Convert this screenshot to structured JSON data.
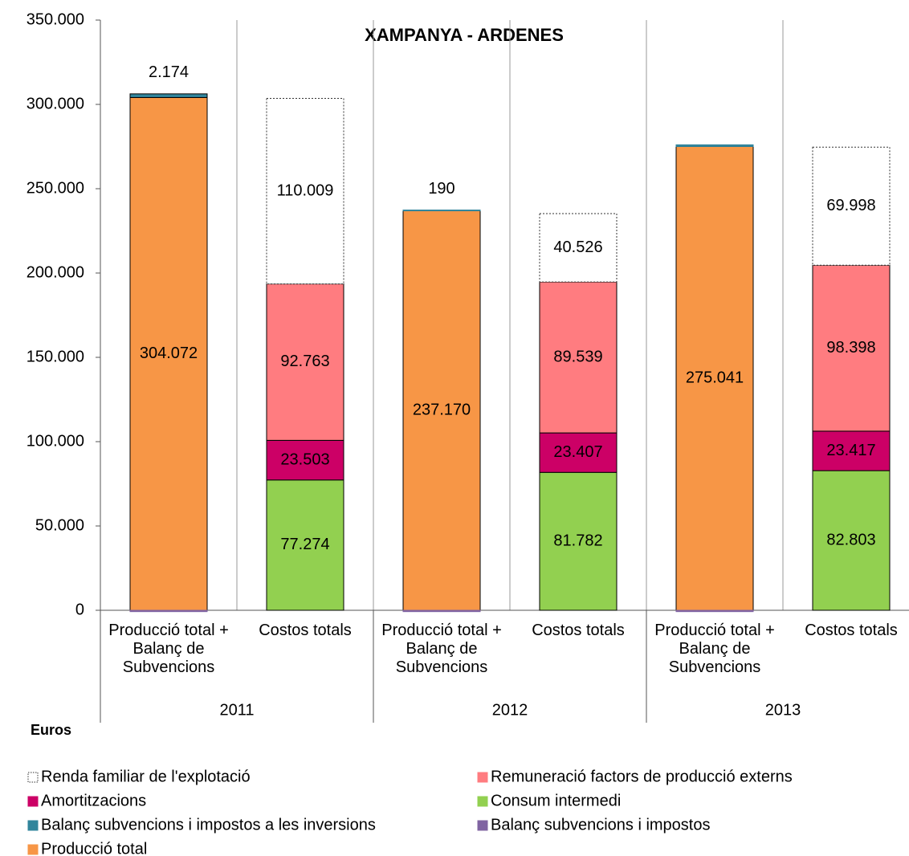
{
  "chart_data": {
    "type": "stacked_bar",
    "title": "XAMPANYA - ARDENES",
    "y_label": "Euros",
    "categories": [
      "Producció total + Balanç de Subvencions",
      "Costos totals",
      "Producció total + Balanç de Subvencions",
      "Costos totals",
      "Producció total + Balanç de Subvencions",
      "Costos totals"
    ],
    "group_labels": [
      "2011",
      "2012",
      "2013"
    ],
    "ylim": [
      0,
      350000
    ],
    "yticks": [
      0,
      {
        "value": 50000,
        "label": "50.000"
      },
      {
        "value": 100000,
        "label": "100.000"
      },
      {
        "value": 150000,
        "label": "150.000"
      },
      {
        "value": 200000,
        "label": "200.000"
      },
      {
        "value": 250000,
        "label": "250.000"
      },
      {
        "value": 300000,
        "label": "300.000"
      },
      {
        "value": 350000,
        "label": "350.000"
      }
    ],
    "series": [
      {
        "name": "Producció total",
        "color": "#f79646",
        "label_color": "#000000",
        "values": [
          304072,
          null,
          237170,
          null,
          275041,
          null
        ],
        "value_labels": [
          "304.072",
          null,
          "237.170",
          null,
          "275.041",
          null
        ]
      },
      {
        "name": "Balanç subvencions i impostos",
        "color": "#8064a2",
        "label_color": "#000000",
        "values": [
          -800,
          null,
          -800,
          null,
          -800,
          null
        ],
        "value_labels": [
          null,
          null,
          null,
          null,
          null,
          null
        ]
      },
      {
        "name": "Balanç subvencions i impostos a les inversions",
        "color": "#31859c",
        "label_color": "#000000",
        "values": [
          2174,
          null,
          190,
          null,
          1000,
          null
        ],
        "value_labels": [
          "2.174",
          null,
          "190",
          null,
          null,
          null
        ]
      },
      {
        "name": "Consum intermedi",
        "color": "#92d050",
        "label_color": "#000000",
        "values": [
          null,
          77274,
          null,
          81782,
          null,
          82803
        ],
        "value_labels": [
          null,
          "77.274",
          null,
          "81.782",
          null,
          "82.803"
        ]
      },
      {
        "name": "Amortitzacions",
        "color": "#cc0066",
        "label_color": "#ffffff",
        "values": [
          null,
          23503,
          null,
          23407,
          null,
          23417
        ],
        "value_labels": [
          null,
          "23.503",
          null,
          "23.407",
          null,
          "23.417"
        ]
      },
      {
        "name": "Remuneració factors de producció externs",
        "color": "#ff7c80",
        "label_color": "#000000",
        "values": [
          null,
          92763,
          null,
          89539,
          null,
          98398
        ],
        "value_labels": [
          null,
          "92.763",
          null,
          "89.539",
          null,
          "98.398"
        ]
      },
      {
        "name": "Renda familiar de l'explotació",
        "color": "#ffffff",
        "border": "dotted",
        "label_color": "#000000",
        "values": [
          null,
          110009,
          null,
          40526,
          null,
          69998
        ],
        "value_labels": [
          null,
          "110.009",
          null,
          "40.526",
          null,
          "69.998"
        ]
      }
    ]
  }
}
